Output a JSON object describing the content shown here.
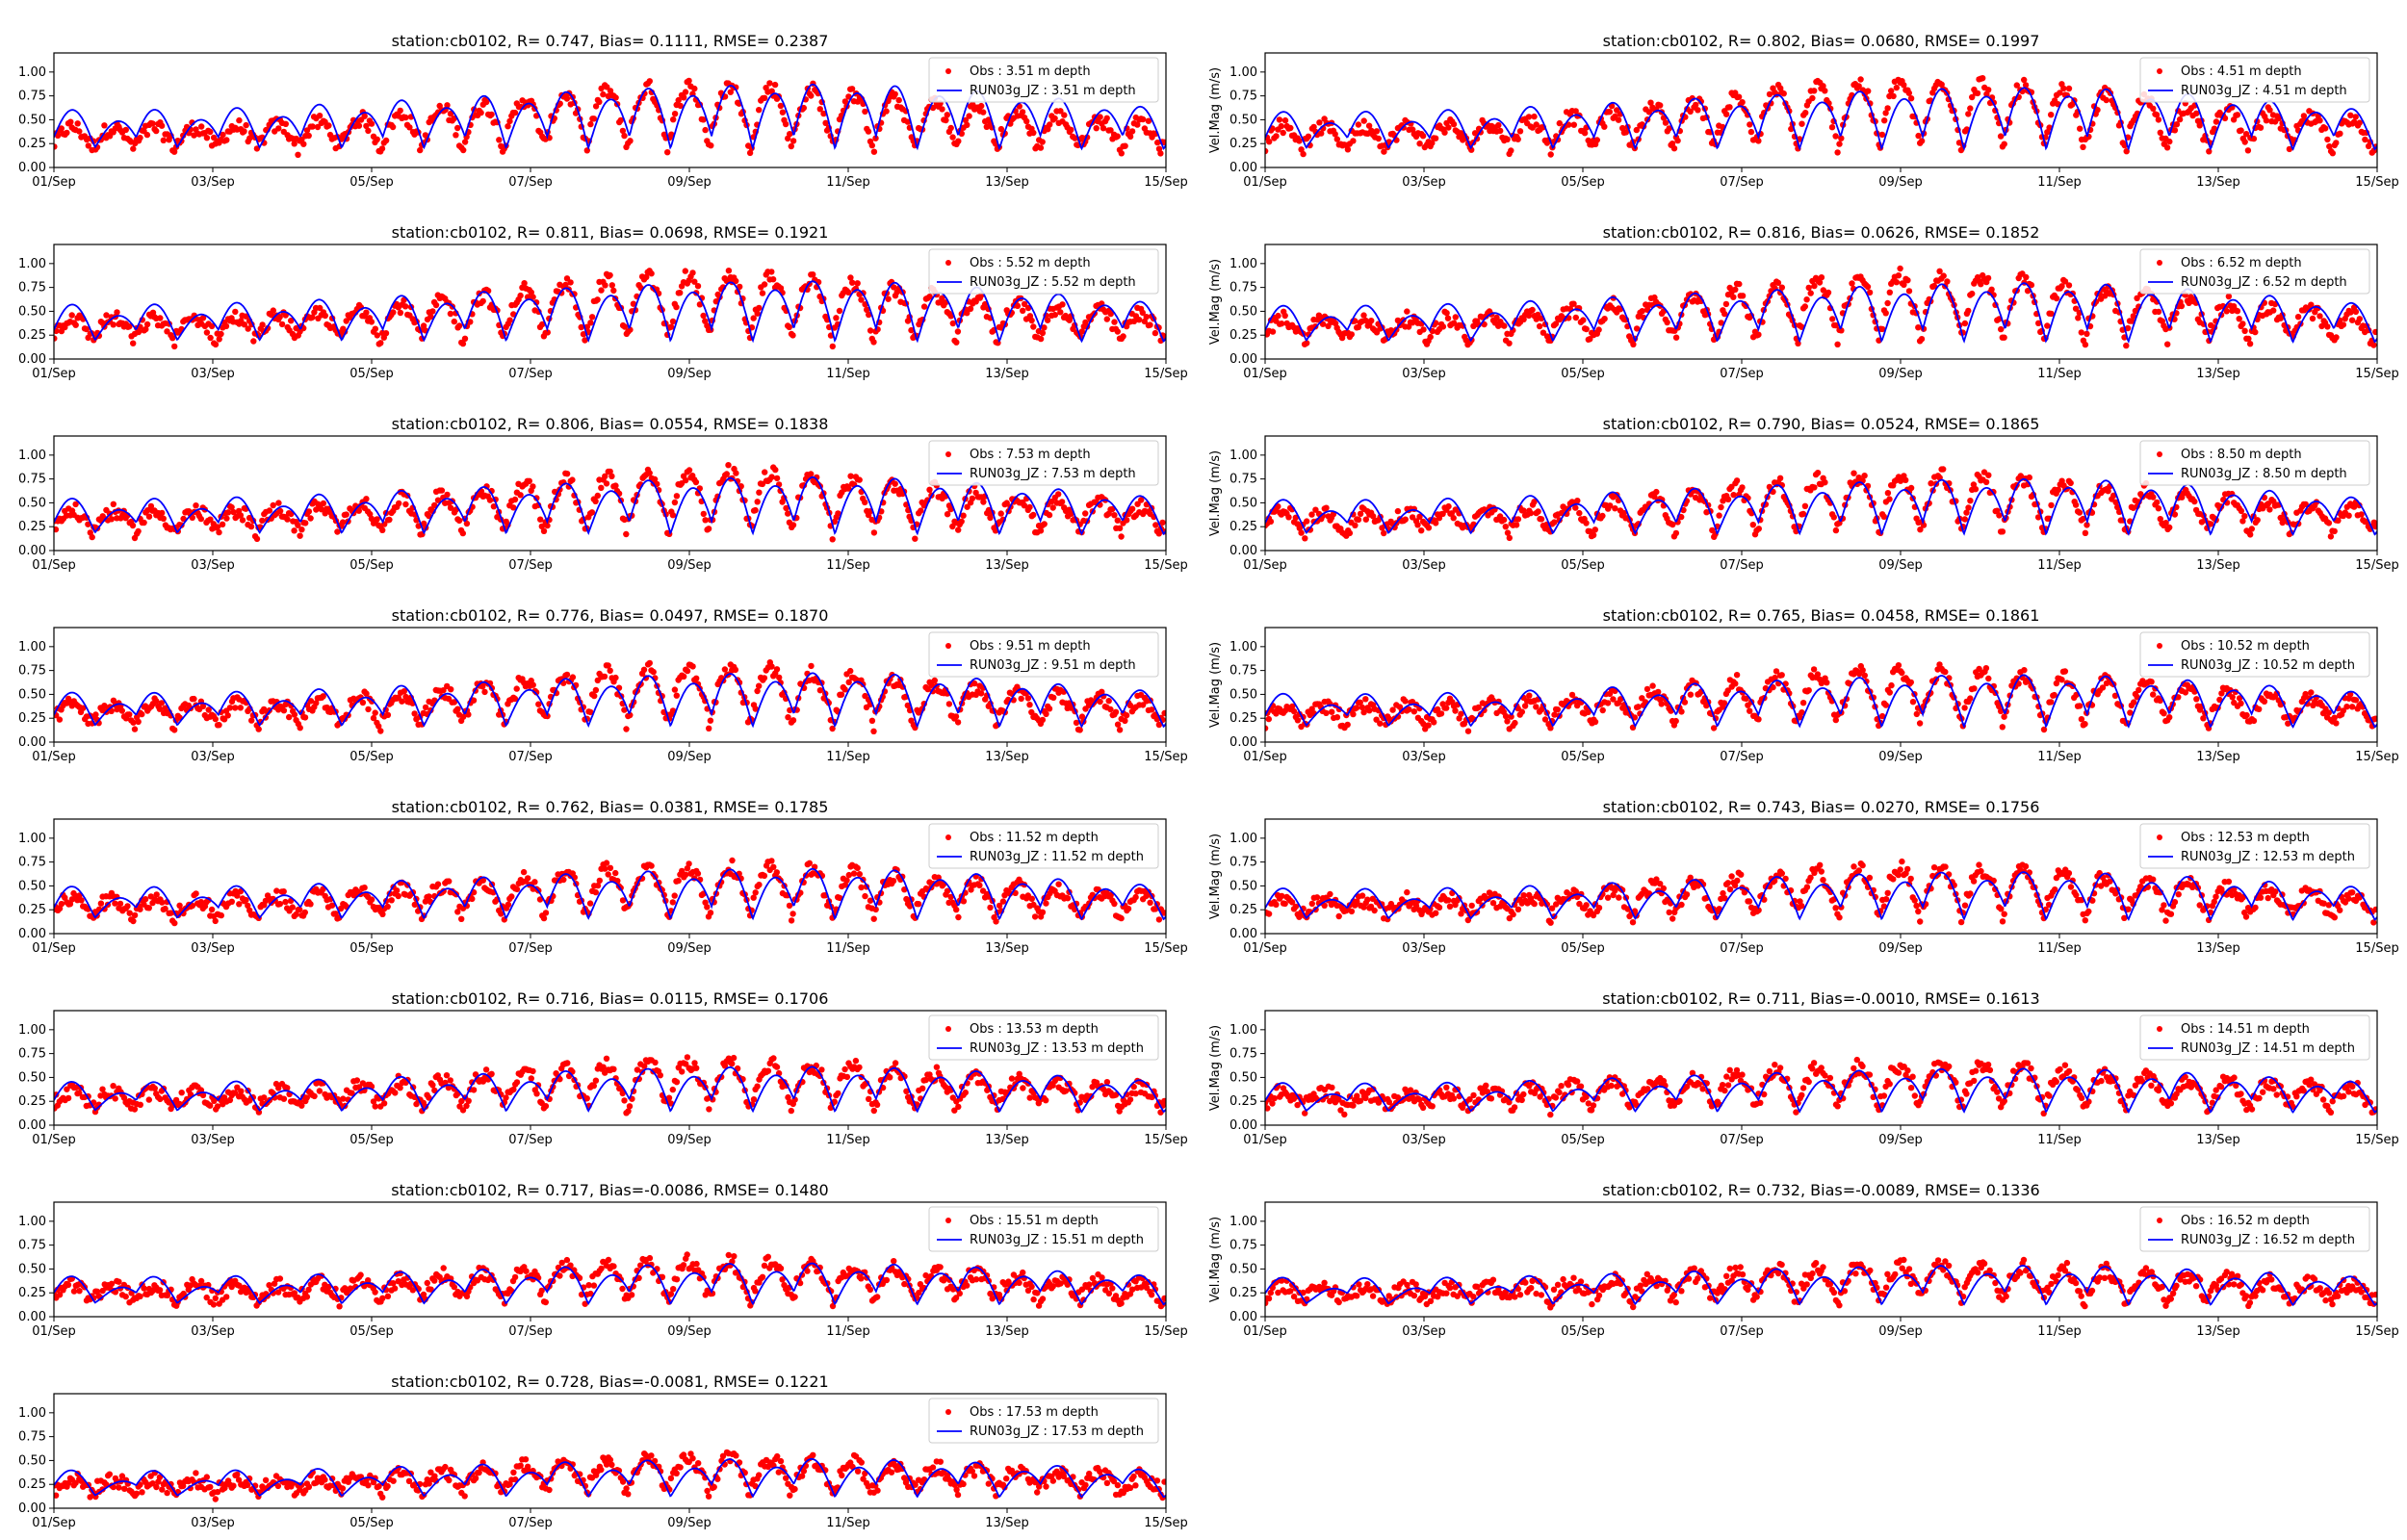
{
  "figure": {
    "station": "cb0102",
    "colors": {
      "obs": "#ff0000",
      "model": "#0000ff",
      "axes": "#000000"
    }
  },
  "chart_data": [
    {
      "type": "line",
      "title": "station:cb0102, R= 0.747, Bias= 0.1111, RMSE= 0.2387",
      "xlabel": "",
      "ylabel": "",
      "xticks": [
        "01/Sep",
        "03/Sep",
        "05/Sep",
        "07/Sep",
        "09/Sep",
        "11/Sep",
        "13/Sep",
        "15/Sep"
      ],
      "xlim": [
        "2023-09-01",
        "2023-09-15"
      ],
      "yticks": [
        "0.00",
        "0.25",
        "0.50",
        "0.75",
        "1.00"
      ],
      "ylim": [
        0,
        1.2
      ],
      "legend_position": "top-right",
      "series": [
        {
          "name": "Obs : 3.51 m depth",
          "style": "scatter",
          "mean": 0.45,
          "amplitude": 0.3,
          "growth": 0.55
        },
        {
          "name": "RUN03g_JZ : 3.51 m depth",
          "style": "line",
          "mean": 0.48,
          "amplitude": 0.38,
          "growth": 0.45
        }
      ]
    },
    {
      "type": "line",
      "title": "station:cb0102, R= 0.802, Bias= 0.0680, RMSE= 0.1997",
      "xlabel": "",
      "ylabel": "Vel.Mag (m/s)",
      "xticks": [
        "01/Sep",
        "03/Sep",
        "05/Sep",
        "07/Sep",
        "09/Sep",
        "11/Sep",
        "13/Sep",
        "15/Sep"
      ],
      "xlim": [
        "2023-09-01",
        "2023-09-15"
      ],
      "yticks": [
        "0.00",
        "0.25",
        "0.50",
        "0.75",
        "1.00"
      ],
      "ylim": [
        0,
        1.2
      ],
      "legend_position": "top-right",
      "series": [
        {
          "name": "Obs : 4.51 m depth",
          "style": "scatter",
          "mean": 0.45,
          "amplitude": 0.32,
          "growth": 0.55
        },
        {
          "name": "RUN03g_JZ : 4.51 m depth",
          "style": "line",
          "mean": 0.47,
          "amplitude": 0.36,
          "growth": 0.45
        }
      ]
    },
    {
      "type": "line",
      "title": "station:cb0102, R= 0.811, Bias= 0.0698, RMSE= 0.1921",
      "xlabel": "",
      "ylabel": "",
      "xticks": [
        "01/Sep",
        "03/Sep",
        "05/Sep",
        "07/Sep",
        "09/Sep",
        "11/Sep",
        "13/Sep",
        "15/Sep"
      ],
      "xlim": [
        "2023-09-01",
        "2023-09-15"
      ],
      "yticks": [
        "0.00",
        "0.25",
        "0.50",
        "0.75",
        "1.00"
      ],
      "ylim": [
        0,
        1.2
      ],
      "legend_position": "top-right",
      "series": [
        {
          "name": "Obs : 5.52 m depth",
          "style": "scatter",
          "mean": 0.45,
          "amplitude": 0.31,
          "growth": 0.55
        },
        {
          "name": "RUN03g_JZ : 5.52 m depth",
          "style": "line",
          "mean": 0.46,
          "amplitude": 0.35,
          "growth": 0.45
        }
      ]
    },
    {
      "type": "line",
      "title": "station:cb0102, R= 0.816, Bias= 0.0626, RMSE= 0.1852",
      "xlabel": "",
      "ylabel": "Vel.Mag (m/s)",
      "xticks": [
        "01/Sep",
        "03/Sep",
        "05/Sep",
        "07/Sep",
        "09/Sep",
        "11/Sep",
        "13/Sep",
        "15/Sep"
      ],
      "xlim": [
        "2023-09-01",
        "2023-09-15"
      ],
      "yticks": [
        "0.00",
        "0.25",
        "0.50",
        "0.75",
        "1.00"
      ],
      "ylim": [
        0,
        1.2
      ],
      "legend_position": "top-right",
      "series": [
        {
          "name": "Obs : 6.52 m depth",
          "style": "scatter",
          "mean": 0.44,
          "amplitude": 0.31,
          "growth": 0.55
        },
        {
          "name": "RUN03g_JZ : 6.52 m depth",
          "style": "line",
          "mean": 0.45,
          "amplitude": 0.34,
          "growth": 0.45
        }
      ]
    },
    {
      "type": "line",
      "title": "station:cb0102, R= 0.806, Bias= 0.0554, RMSE= 0.1838",
      "xlabel": "",
      "ylabel": "",
      "xticks": [
        "01/Sep",
        "03/Sep",
        "05/Sep",
        "07/Sep",
        "09/Sep",
        "11/Sep",
        "13/Sep",
        "15/Sep"
      ],
      "xlim": [
        "2023-09-01",
        "2023-09-15"
      ],
      "yticks": [
        "0.00",
        "0.25",
        "0.50",
        "0.75",
        "1.00"
      ],
      "ylim": [
        0,
        1.2
      ],
      "legend_position": "top-right",
      "series": [
        {
          "name": "Obs : 7.53 m depth",
          "style": "scatter",
          "mean": 0.43,
          "amplitude": 0.3,
          "growth": 0.5
        },
        {
          "name": "RUN03g_JZ : 7.53 m depth",
          "style": "line",
          "mean": 0.44,
          "amplitude": 0.33,
          "growth": 0.4
        }
      ]
    },
    {
      "type": "line",
      "title": "station:cb0102, R= 0.790, Bias= 0.0524, RMSE= 0.1865",
      "xlabel": "",
      "ylabel": "Vel.Mag (m/s)",
      "xticks": [
        "01/Sep",
        "03/Sep",
        "05/Sep",
        "07/Sep",
        "09/Sep",
        "11/Sep",
        "13/Sep",
        "15/Sep"
      ],
      "xlim": [
        "2023-09-01",
        "2023-09-15"
      ],
      "yticks": [
        "0.00",
        "0.25",
        "0.50",
        "0.75",
        "1.00"
      ],
      "ylim": [
        0,
        1.2
      ],
      "legend_position": "top-right",
      "series": [
        {
          "name": "Obs : 8.50 m depth",
          "style": "scatter",
          "mean": 0.42,
          "amplitude": 0.29,
          "growth": 0.5
        },
        {
          "name": "RUN03g_JZ : 8.50 m depth",
          "style": "line",
          "mean": 0.43,
          "amplitude": 0.32,
          "growth": 0.4
        }
      ]
    },
    {
      "type": "line",
      "title": "station:cb0102, R= 0.776, Bias= 0.0497, RMSE= 0.1870",
      "xlabel": "",
      "ylabel": "",
      "xticks": [
        "01/Sep",
        "03/Sep",
        "05/Sep",
        "07/Sep",
        "09/Sep",
        "11/Sep",
        "13/Sep",
        "15/Sep"
      ],
      "xlim": [
        "2023-09-01",
        "2023-09-15"
      ],
      "yticks": [
        "0.00",
        "0.25",
        "0.50",
        "0.75",
        "1.00"
      ],
      "ylim": [
        0,
        1.2
      ],
      "legend_position": "top-right",
      "series": [
        {
          "name": "Obs : 9.51 m depth",
          "style": "scatter",
          "mean": 0.41,
          "amplitude": 0.28,
          "growth": 0.5
        },
        {
          "name": "RUN03g_JZ : 9.51 m depth",
          "style": "line",
          "mean": 0.42,
          "amplitude": 0.31,
          "growth": 0.35
        }
      ]
    },
    {
      "type": "line",
      "title": "station:cb0102, R= 0.765, Bias= 0.0458, RMSE= 0.1861",
      "xlabel": "",
      "ylabel": "Vel.Mag (m/s)",
      "xticks": [
        "01/Sep",
        "03/Sep",
        "05/Sep",
        "07/Sep",
        "09/Sep",
        "11/Sep",
        "13/Sep",
        "15/Sep"
      ],
      "xlim": [
        "2023-09-01",
        "2023-09-15"
      ],
      "yticks": [
        "0.00",
        "0.25",
        "0.50",
        "0.75",
        "1.00"
      ],
      "ylim": [
        0,
        1.2
      ],
      "legend_position": "top-right",
      "series": [
        {
          "name": "Obs : 10.52 m depth",
          "style": "scatter",
          "mean": 0.41,
          "amplitude": 0.27,
          "growth": 0.5
        },
        {
          "name": "RUN03g_JZ : 10.52 m depth",
          "style": "line",
          "mean": 0.41,
          "amplitude": 0.3,
          "growth": 0.35
        }
      ]
    },
    {
      "type": "line",
      "title": "station:cb0102, R= 0.762, Bias= 0.0381, RMSE= 0.1785",
      "xlabel": "",
      "ylabel": "",
      "xticks": [
        "01/Sep",
        "03/Sep",
        "05/Sep",
        "07/Sep",
        "09/Sep",
        "11/Sep",
        "13/Sep",
        "15/Sep"
      ],
      "xlim": [
        "2023-09-01",
        "2023-09-15"
      ],
      "yticks": [
        "0.00",
        "0.25",
        "0.50",
        "0.75",
        "1.00"
      ],
      "ylim": [
        0,
        1.2
      ],
      "legend_position": "top-right",
      "series": [
        {
          "name": "Obs : 11.52 m depth",
          "style": "scatter",
          "mean": 0.4,
          "amplitude": 0.26,
          "growth": 0.45
        },
        {
          "name": "RUN03g_JZ : 11.52 m depth",
          "style": "line",
          "mean": 0.4,
          "amplitude": 0.29,
          "growth": 0.3
        }
      ]
    },
    {
      "type": "line",
      "title": "station:cb0102, R= 0.743, Bias= 0.0270, RMSE= 0.1756",
      "xlabel": "",
      "ylabel": "Vel.Mag (m/s)",
      "xticks": [
        "01/Sep",
        "03/Sep",
        "05/Sep",
        "07/Sep",
        "09/Sep",
        "11/Sep",
        "13/Sep",
        "15/Sep"
      ],
      "xlim": [
        "2023-09-01",
        "2023-09-15"
      ],
      "yticks": [
        "0.00",
        "0.25",
        "0.50",
        "0.75",
        "1.00"
      ],
      "ylim": [
        0,
        1.2
      ],
      "legend_position": "top-right",
      "series": [
        {
          "name": "Obs : 12.53 m depth",
          "style": "scatter",
          "mean": 0.4,
          "amplitude": 0.25,
          "growth": 0.45
        },
        {
          "name": "RUN03g_JZ : 12.53 m depth",
          "style": "line",
          "mean": 0.39,
          "amplitude": 0.27,
          "growth": 0.3
        }
      ]
    },
    {
      "type": "line",
      "title": "station:cb0102, R= 0.716, Bias= 0.0115, RMSE= 0.1706",
      "xlabel": "",
      "ylabel": "",
      "xticks": [
        "01/Sep",
        "03/Sep",
        "05/Sep",
        "07/Sep",
        "09/Sep",
        "11/Sep",
        "13/Sep",
        "15/Sep"
      ],
      "xlim": [
        "2023-09-01",
        "2023-09-15"
      ],
      "yticks": [
        "0.00",
        "0.25",
        "0.50",
        "0.75",
        "1.00"
      ],
      "ylim": [
        0,
        1.2
      ],
      "legend_position": "top-right",
      "series": [
        {
          "name": "Obs : 13.53 m depth",
          "style": "scatter",
          "mean": 0.4,
          "amplitude": 0.24,
          "growth": 0.45
        },
        {
          "name": "RUN03g_JZ : 13.53 m depth",
          "style": "line",
          "mean": 0.38,
          "amplitude": 0.25,
          "growth": 0.3
        }
      ]
    },
    {
      "type": "line",
      "title": "station:cb0102, R= 0.711, Bias=-0.0010, RMSE= 0.1613",
      "xlabel": "",
      "ylabel": "Vel.Mag (m/s)",
      "xticks": [
        "01/Sep",
        "03/Sep",
        "05/Sep",
        "07/Sep",
        "09/Sep",
        "11/Sep",
        "13/Sep",
        "15/Sep"
      ],
      "xlim": [
        "2023-09-01",
        "2023-09-15"
      ],
      "yticks": [
        "0.00",
        "0.25",
        "0.50",
        "0.75",
        "1.00"
      ],
      "ylim": [
        0,
        1.2
      ],
      "legend_position": "top-right",
      "series": [
        {
          "name": "Obs : 14.51 m depth",
          "style": "scatter",
          "mean": 0.4,
          "amplitude": 0.23,
          "growth": 0.4
        },
        {
          "name": "RUN03g_JZ : 14.51 m depth",
          "style": "line",
          "mean": 0.37,
          "amplitude": 0.24,
          "growth": 0.3
        }
      ]
    },
    {
      "type": "line",
      "title": "station:cb0102, R= 0.717, Bias=-0.0086, RMSE= 0.1480",
      "xlabel": "",
      "ylabel": "",
      "xticks": [
        "01/Sep",
        "03/Sep",
        "05/Sep",
        "07/Sep",
        "09/Sep",
        "11/Sep",
        "13/Sep",
        "15/Sep"
      ],
      "xlim": [
        "2023-09-01",
        "2023-09-15"
      ],
      "yticks": [
        "0.00",
        "0.25",
        "0.50",
        "0.75",
        "1.00"
      ],
      "ylim": [
        0,
        1.2
      ],
      "legend_position": "top-right",
      "series": [
        {
          "name": "Obs : 15.51 m depth",
          "style": "scatter",
          "mean": 0.38,
          "amplitude": 0.21,
          "growth": 0.4
        },
        {
          "name": "RUN03g_JZ : 15.51 m depth",
          "style": "line",
          "mean": 0.36,
          "amplitude": 0.22,
          "growth": 0.3
        }
      ]
    },
    {
      "type": "line",
      "title": "station:cb0102, R= 0.732, Bias=-0.0089, RMSE= 0.1336",
      "xlabel": "",
      "ylabel": "Vel.Mag (m/s)",
      "xticks": [
        "01/Sep",
        "03/Sep",
        "05/Sep",
        "07/Sep",
        "09/Sep",
        "11/Sep",
        "13/Sep",
        "15/Sep"
      ],
      "xlim": [
        "2023-09-01",
        "2023-09-15"
      ],
      "yticks": [
        "0.00",
        "0.25",
        "0.50",
        "0.75",
        "1.00"
      ],
      "ylim": [
        0,
        1.2
      ],
      "legend_position": "top-right",
      "series": [
        {
          "name": "Obs : 16.52 m depth",
          "style": "scatter",
          "mean": 0.37,
          "amplitude": 0.2,
          "growth": 0.35
        },
        {
          "name": "RUN03g_JZ : 16.52 m depth",
          "style": "line",
          "mean": 0.35,
          "amplitude": 0.21,
          "growth": 0.25
        }
      ]
    },
    {
      "type": "line",
      "title": "station:cb0102, R= 0.728, Bias=-0.0081, RMSE= 0.1221",
      "xlabel": "",
      "ylabel": "",
      "xticks": [
        "01/Sep",
        "03/Sep",
        "05/Sep",
        "07/Sep",
        "09/Sep",
        "11/Sep",
        "13/Sep",
        "15/Sep"
      ],
      "xlim": [
        "2023-09-01",
        "2023-09-15"
      ],
      "yticks": [
        "0.00",
        "0.25",
        "0.50",
        "0.75",
        "1.00"
      ],
      "ylim": [
        0,
        1.2
      ],
      "legend_position": "top-right",
      "series": [
        {
          "name": "Obs : 17.53 m depth",
          "style": "scatter",
          "mean": 0.36,
          "amplitude": 0.19,
          "growth": 0.35
        },
        {
          "name": "RUN03g_JZ : 17.53 m depth",
          "style": "line",
          "mean": 0.34,
          "amplitude": 0.2,
          "growth": 0.25
        }
      ]
    }
  ]
}
